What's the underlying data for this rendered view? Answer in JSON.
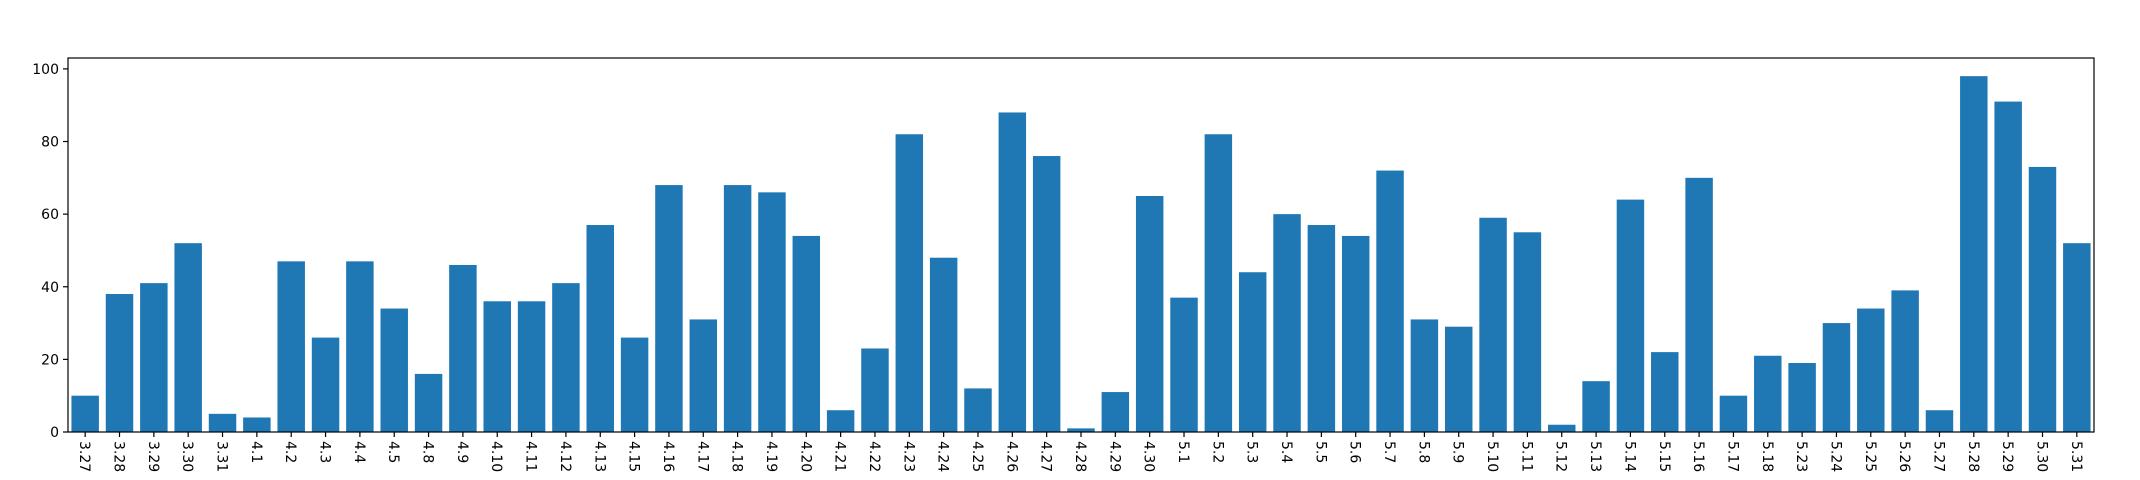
{
  "chart_data": {
    "type": "bar",
    "title": "",
    "xlabel": "",
    "ylabel": "",
    "ylim": [
      0,
      103
    ],
    "yticks": [
      0,
      20,
      40,
      60,
      80,
      100
    ],
    "grid": false,
    "bar_color": "#1f77b4",
    "categories": [
      "3.27",
      "3.28",
      "3.29",
      "3.30",
      "3.31",
      "4.1",
      "4.2",
      "4.3",
      "4.4",
      "4.5",
      "4.8",
      "4.9",
      "4.10",
      "4.11",
      "4.12",
      "4.13",
      "4.15",
      "4.16",
      "4.17",
      "4.18",
      "4.19",
      "4.20",
      "4.21",
      "4.22",
      "4.23",
      "4.24",
      "4.25",
      "4.26",
      "4.27",
      "4.28",
      "4.29",
      "4.30",
      "5.1",
      "5.2",
      "5.3",
      "5.4",
      "5.5",
      "5.6",
      "5.7",
      "5.8",
      "5.9",
      "5.10",
      "5.11",
      "5.12",
      "5.13",
      "5.14",
      "5.15",
      "5.16",
      "5.17",
      "5.18",
      "5.23",
      "5.24",
      "5.25",
      "5.26",
      "5.27",
      "5.28",
      "5.29",
      "5.30",
      "5.31"
    ],
    "values": [
      10,
      38,
      41,
      52,
      5,
      4,
      47,
      26,
      47,
      34,
      16,
      46,
      36,
      36,
      41,
      57,
      26,
      68,
      31,
      68,
      66,
      54,
      6,
      23,
      82,
      48,
      12,
      88,
      76,
      1,
      11,
      65,
      37,
      82,
      44,
      60,
      57,
      54,
      72,
      31,
      29,
      59,
      55,
      2,
      14,
      64,
      22,
      70,
      10,
      21,
      19,
      30,
      34,
      39,
      6,
      98,
      91,
      73,
      52
    ]
  }
}
